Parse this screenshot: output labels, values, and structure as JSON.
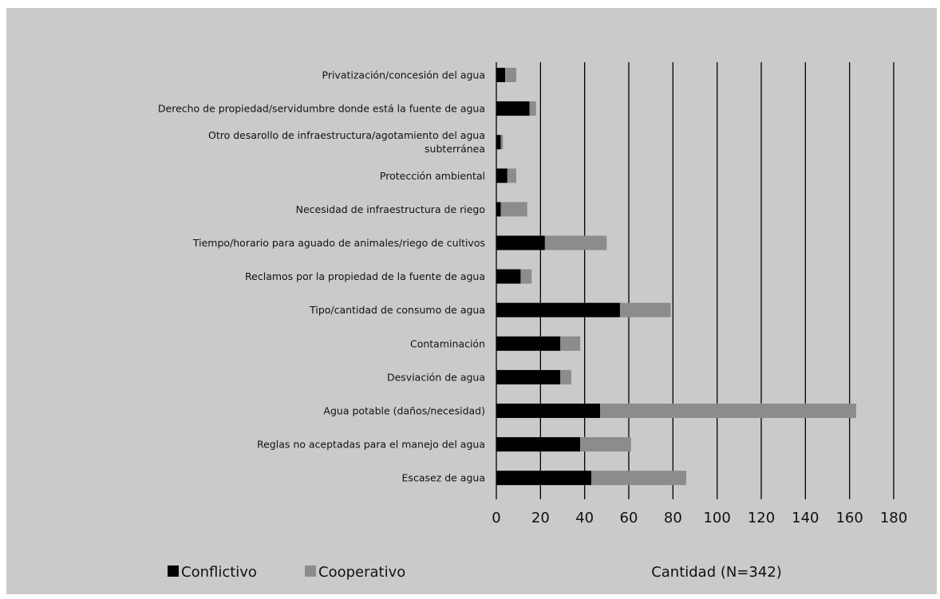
{
  "chart_data": {
    "type": "bar",
    "orientation": "horizontal",
    "stacked": true,
    "categories": [
      "Privatización/concesión del agua",
      "Derecho de propiedad/servidumbre donde está la fuente de agua",
      [
        "Otro desarollo de infraestructura/agotamiento del agua",
        "subterránea"
      ],
      "Protección ambiental",
      "Necesidad de infraestructura de riego",
      "Tiempo/horario para aguado de animales/riego de cultivos",
      "Reclamos por la propiedad de la fuente de agua",
      "Tipo/cantidad de consumo de agua",
      "Contaminación",
      "Desviación de agua",
      "Agua potable (daños/necesidad)",
      "Reglas no aceptadas para el manejo del agua",
      "Escasez de agua"
    ],
    "series": [
      {
        "name": "Conflictivo",
        "color": "#000000",
        "values": [
          4,
          15,
          2,
          5,
          2,
          22,
          11,
          56,
          29,
          29,
          47,
          38,
          43
        ]
      },
      {
        "name": "Cooperativo",
        "color": "#8c8c8c",
        "values": [
          5,
          3,
          1,
          4,
          12,
          28,
          5,
          23,
          9,
          5,
          116,
          23,
          43
        ]
      }
    ],
    "xlim": [
      0,
      180
    ],
    "xticks": [
      "0",
      "20",
      "40",
      "60",
      "80",
      "100",
      "120",
      "140",
      "160",
      "180"
    ],
    "xlabel": "Cantidad (N=342)",
    "grid": "vertical",
    "legend_position": "bottom-left"
  }
}
